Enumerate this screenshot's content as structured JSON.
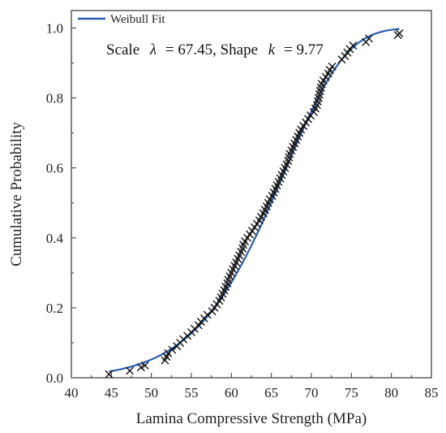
{
  "chart_data": {
    "type": "scatter",
    "title": "",
    "xlabel": "Lamina Compressive Strength (MPa)",
    "ylabel": "Cumulative Probability",
    "xlim": [
      40,
      85
    ],
    "ylim": [
      0,
      1.05
    ],
    "xticks": [
      40,
      45,
      50,
      55,
      60,
      65,
      70,
      75,
      80,
      85
    ],
    "yticks": [
      0.0,
      0.2,
      0.4,
      0.6,
      0.8,
      1.0
    ],
    "xtick_labels": [
      "40",
      "45",
      "50",
      "55",
      "60",
      "65",
      "70",
      "75",
      "80",
      "85"
    ],
    "ytick_labels": [
      "0.0",
      "0.2",
      "0.4",
      "0.6",
      "0.8",
      "1.0"
    ],
    "grid": false,
    "legend": {
      "placement": "top-left",
      "entries": [
        "Weibull Fit"
      ]
    },
    "annotation": {
      "prefix": "Scale",
      "scale_symbol": "λ",
      "scale_text": "= 67.45, Shape",
      "shape_symbol": "k",
      "shape_text": "= 9.77"
    },
    "series": [
      {
        "name": "Weibull Fit",
        "kind": "line",
        "color": "#2b5fb4",
        "distribution": "weibull",
        "scale": 67.45,
        "shape": 9.77,
        "x_range": [
          44.7,
          81
        ]
      },
      {
        "kind": "scatter",
        "marker": "x",
        "color": "#111111",
        "points": [
          [
            44.7,
            0.01
          ],
          [
            47.3,
            0.02
          ],
          [
            48.7,
            0.03
          ],
          [
            49.2,
            0.035
          ],
          [
            51.7,
            0.05
          ],
          [
            51.9,
            0.06
          ],
          [
            52.1,
            0.07
          ],
          [
            52.6,
            0.08
          ],
          [
            53.2,
            0.09
          ],
          [
            53.6,
            0.1
          ],
          [
            54.0,
            0.11
          ],
          [
            54.5,
            0.12
          ],
          [
            55.0,
            0.13
          ],
          [
            55.4,
            0.14
          ],
          [
            55.9,
            0.15
          ],
          [
            56.2,
            0.16
          ],
          [
            56.6,
            0.17
          ],
          [
            57.0,
            0.18
          ],
          [
            57.6,
            0.19
          ],
          [
            57.9,
            0.2
          ],
          [
            58.2,
            0.21
          ],
          [
            58.5,
            0.22
          ],
          [
            58.7,
            0.23
          ],
          [
            58.9,
            0.24
          ],
          [
            59.1,
            0.25
          ],
          [
            59.3,
            0.26
          ],
          [
            59.5,
            0.27
          ],
          [
            59.6,
            0.28
          ],
          [
            59.8,
            0.29
          ],
          [
            60.0,
            0.3
          ],
          [
            60.2,
            0.31
          ],
          [
            60.4,
            0.32
          ],
          [
            60.6,
            0.33
          ],
          [
            60.8,
            0.34
          ],
          [
            61.0,
            0.35
          ],
          [
            61.2,
            0.36
          ],
          [
            61.4,
            0.37
          ],
          [
            61.5,
            0.38
          ],
          [
            61.7,
            0.39
          ],
          [
            62.0,
            0.4
          ],
          [
            62.3,
            0.41
          ],
          [
            62.6,
            0.42
          ],
          [
            62.9,
            0.43
          ],
          [
            63.2,
            0.44
          ],
          [
            63.5,
            0.45
          ],
          [
            63.7,
            0.46
          ],
          [
            64.0,
            0.47
          ],
          [
            64.2,
            0.48
          ],
          [
            64.4,
            0.49
          ],
          [
            64.6,
            0.5
          ],
          [
            64.8,
            0.51
          ],
          [
            65.1,
            0.52
          ],
          [
            65.3,
            0.53
          ],
          [
            65.5,
            0.54
          ],
          [
            65.7,
            0.55
          ],
          [
            65.9,
            0.56
          ],
          [
            66.1,
            0.57
          ],
          [
            66.3,
            0.58
          ],
          [
            66.5,
            0.59
          ],
          [
            66.7,
            0.6
          ],
          [
            66.9,
            0.61
          ],
          [
            67.1,
            0.62
          ],
          [
            67.2,
            0.63
          ],
          [
            67.3,
            0.64
          ],
          [
            67.5,
            0.65
          ],
          [
            67.7,
            0.66
          ],
          [
            67.9,
            0.67
          ],
          [
            68.1,
            0.68
          ],
          [
            68.3,
            0.69
          ],
          [
            68.5,
            0.7
          ],
          [
            68.7,
            0.71
          ],
          [
            69.0,
            0.72
          ],
          [
            69.3,
            0.73
          ],
          [
            69.6,
            0.74
          ],
          [
            69.9,
            0.75
          ],
          [
            70.3,
            0.76
          ],
          [
            70.5,
            0.77
          ],
          [
            70.7,
            0.78
          ],
          [
            70.8,
            0.79
          ],
          [
            70.9,
            0.8
          ],
          [
            71.0,
            0.81
          ],
          [
            71.1,
            0.82
          ],
          [
            71.2,
            0.83
          ],
          [
            71.3,
            0.84
          ],
          [
            71.5,
            0.85
          ],
          [
            71.8,
            0.86
          ],
          [
            72.1,
            0.87
          ],
          [
            72.3,
            0.88
          ],
          [
            72.6,
            0.89
          ],
          [
            73.8,
            0.91
          ],
          [
            74.2,
            0.92
          ],
          [
            74.5,
            0.93
          ],
          [
            74.8,
            0.94
          ],
          [
            75.2,
            0.95
          ],
          [
            76.8,
            0.96
          ],
          [
            77.2,
            0.97
          ],
          [
            80.8,
            0.98
          ],
          [
            81.0,
            0.985
          ]
        ]
      }
    ]
  }
}
